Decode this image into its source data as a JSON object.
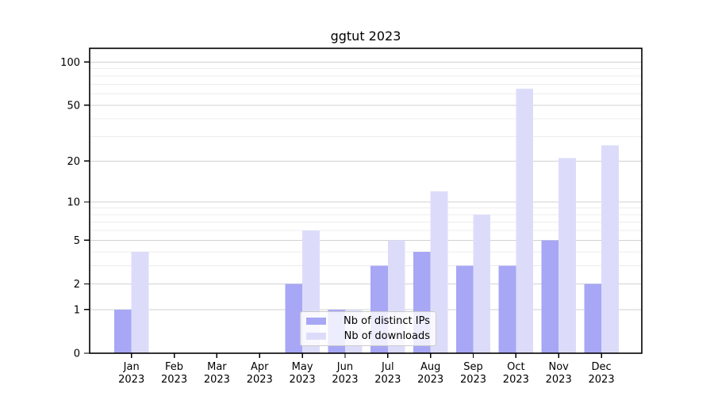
{
  "chart_data": {
    "type": "bar",
    "title": "ggtut 2023",
    "categories": [
      "Jan",
      "Feb",
      "Mar",
      "Apr",
      "May",
      "Jun",
      "Jul",
      "Aug",
      "Sep",
      "Oct",
      "Nov",
      "Dec"
    ],
    "category_year": "2023",
    "series": [
      {
        "name": "Nb of distinct IPs",
        "color": "#a7a7f5",
        "values": [
          1,
          0,
          0,
          0,
          2,
          1,
          3,
          4,
          3,
          3,
          5,
          2
        ]
      },
      {
        "name": "Nb of downloads",
        "color": "#dcdcfa",
        "values": [
          4,
          0,
          0,
          0,
          6,
          1,
          5,
          12,
          8,
          65,
          21,
          26
        ]
      }
    ],
    "xlabel": "",
    "ylabel": "",
    "yscale": "log1p",
    "ylim": [
      0,
      125
    ],
    "yticks": [
      0,
      1,
      2,
      5,
      10,
      20,
      50,
      100
    ],
    "minor_yticks": [
      3,
      4,
      6,
      7,
      8,
      9,
      30,
      40,
      60,
      70,
      80,
      90
    ],
    "grid": "horizontal major+minor",
    "legend_position": "lower center (inside axes)",
    "colors": {
      "major_grid": "#d2d2d2",
      "minor_grid": "#ececec",
      "spine": "#000000",
      "text": "#000000",
      "legend_border": "#cbcbcb",
      "legend_bg": "rgba(255,255,255,0.8)"
    }
  }
}
